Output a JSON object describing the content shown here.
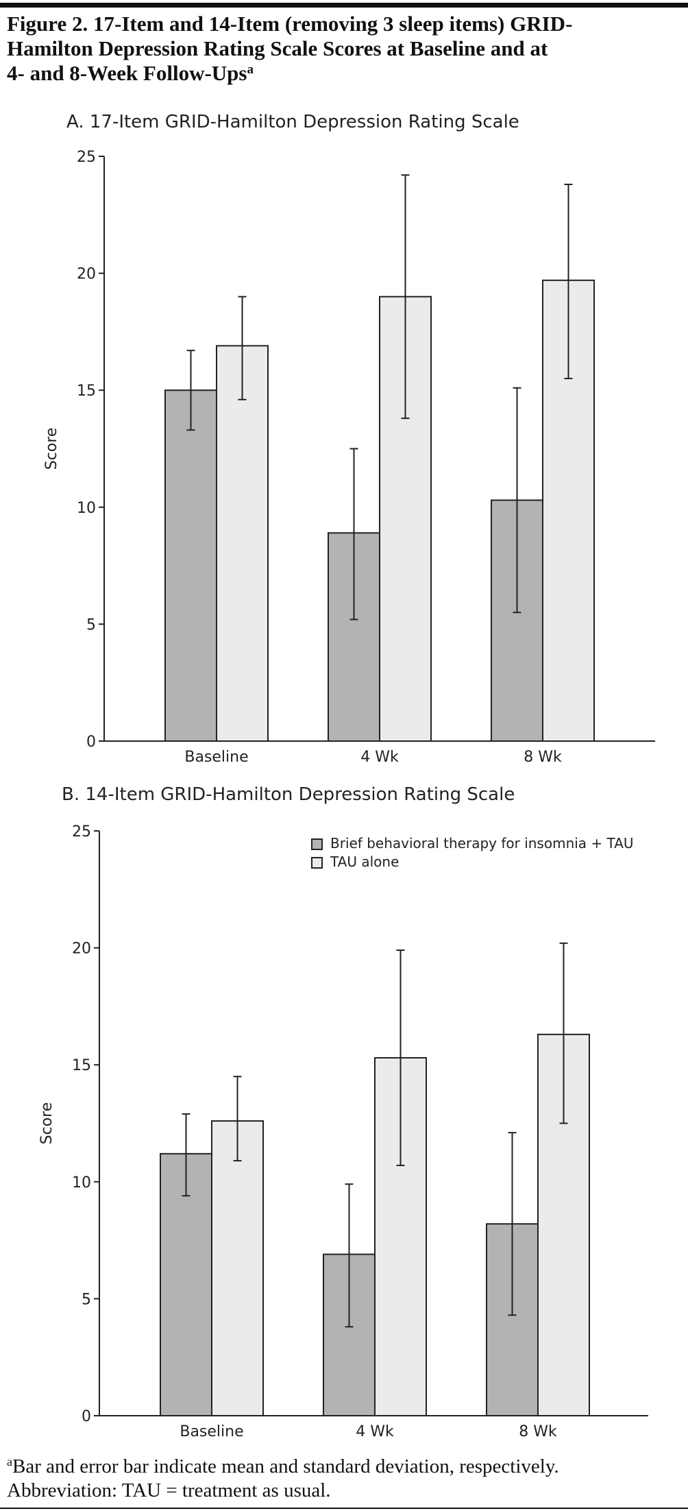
{
  "figure": {
    "title_lines": [
      "Figure 2. 17-Item and 14-Item (removing 3 sleep items) GRID-",
      "Hamilton Depression Rating Scale Scores at Baseline and at",
      "4- and 8-Week Follow-Ups"
    ],
    "title_superscript": "a",
    "footnote_marker": "a",
    "footnote_lines": [
      "Bar and error bar indicate mean and standard deviation, respectively.",
      "Abbreviation: TAU = treatment as usual."
    ]
  },
  "chart_data": [
    {
      "type": "bar",
      "title": "A. 17-Item GRID-Hamilton Depression Rating Scale",
      "xlabel": "",
      "ylabel": "Score",
      "ylim": [
        0,
        25
      ],
      "yticks": [
        0,
        5,
        10,
        15,
        20,
        25
      ],
      "categories": [
        "Baseline",
        "4 Wk",
        "8 Wk"
      ],
      "grid": false,
      "series": [
        {
          "color": "#b3b3b3",
          "values": [
            15.0,
            8.9,
            10.3
          ],
          "error_low": [
            13.3,
            5.2,
            5.5
          ],
          "error_high": [
            16.7,
            12.5,
            15.1
          ]
        },
        {
          "color": "#ebebeb",
          "values": [
            16.9,
            19.0,
            19.7
          ],
          "error_low": [
            14.6,
            13.8,
            15.5
          ],
          "error_high": [
            19.0,
            24.2,
            23.8
          ]
        }
      ]
    },
    {
      "type": "bar",
      "title": "B. 14-Item GRID-Hamilton Depression Rating Scale",
      "xlabel": "",
      "ylabel": "Score",
      "ylim": [
        0,
        25
      ],
      "yticks": [
        0,
        5,
        10,
        15,
        20,
        25
      ],
      "categories": [
        "Baseline",
        "4 Wk",
        "8 Wk"
      ],
      "grid": false,
      "legend_position": "top-right",
      "series": [
        {
          "name": "Brief behavioral therapy for insomnia + TAU",
          "color": "#b3b3b3",
          "values": [
            11.2,
            6.9,
            8.2
          ],
          "error_low": [
            9.4,
            3.8,
            4.3
          ],
          "error_high": [
            12.9,
            9.9,
            12.1
          ]
        },
        {
          "name": "TAU alone",
          "color": "#ebebeb",
          "values": [
            12.6,
            15.3,
            16.3
          ],
          "error_low": [
            10.9,
            10.7,
            12.5
          ],
          "error_high": [
            14.5,
            19.9,
            20.2
          ]
        }
      ]
    }
  ]
}
